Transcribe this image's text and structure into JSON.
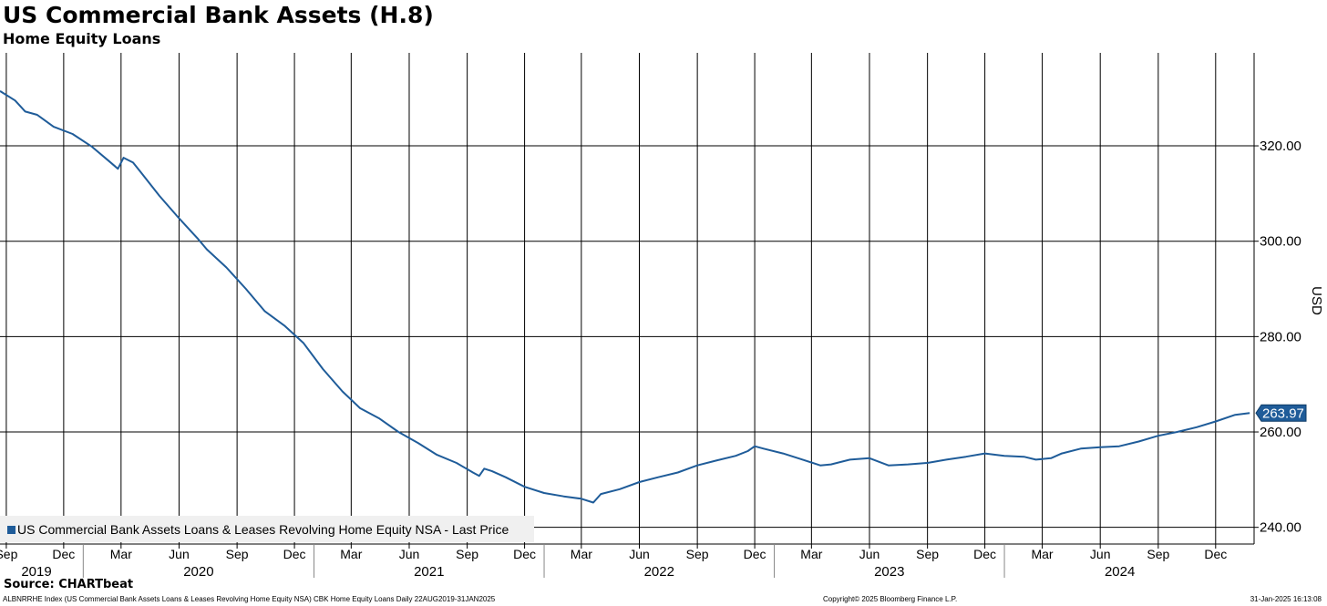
{
  "header": {
    "title": "US Commercial Bank Assets (H.8)",
    "subtitle": "Home Equity Loans"
  },
  "footer": {
    "source": "Source: CHARTbeat",
    "left": "ALBNRRHE Index (US Commercial Bank Assets Loans & Leases Revolving Home Equity NSA) CBK Home Equity Loans  Daily 22AUG2019-31JAN2025",
    "center": "Copyright© 2025 Bloomberg Finance L.P.",
    "right": "31-Jan-2025 16:13:08"
  },
  "colors": {
    "series": "#1f5c99",
    "grid": "#000000",
    "last_price_badge": "#1f5c99",
    "legend_bg": "#f0f0f0"
  },
  "chart_data": {
    "type": "line",
    "title": "US Commercial Bank Assets (H.8)",
    "subtitle": "Home Equity Loans",
    "ylabel": "USD",
    "xlabel": "",
    "ylim": [
      236.5,
      339.5
    ],
    "yticks": [
      240,
      260,
      280,
      300,
      320
    ],
    "ytick_labels": [
      "240.00",
      "260.00",
      "280.00",
      "300.00",
      "320.00"
    ],
    "xlim": [
      "2019-08-22",
      "2025-01-31"
    ],
    "month_ticks": [
      {
        "date": "2019-09-01",
        "label": "Sep"
      },
      {
        "date": "2019-12-01",
        "label": "Dec"
      },
      {
        "date": "2020-03-01",
        "label": "Mar"
      },
      {
        "date": "2020-06-01",
        "label": "Jun"
      },
      {
        "date": "2020-09-01",
        "label": "Sep"
      },
      {
        "date": "2020-12-01",
        "label": "Dec"
      },
      {
        "date": "2021-03-01",
        "label": "Mar"
      },
      {
        "date": "2021-06-01",
        "label": "Jun"
      },
      {
        "date": "2021-09-01",
        "label": "Sep"
      },
      {
        "date": "2021-12-01",
        "label": "Dec"
      },
      {
        "date": "2022-03-01",
        "label": "Mar"
      },
      {
        "date": "2022-06-01",
        "label": "Jun"
      },
      {
        "date": "2022-09-01",
        "label": "Sep"
      },
      {
        "date": "2022-12-01",
        "label": "Dec"
      },
      {
        "date": "2023-03-01",
        "label": "Mar"
      },
      {
        "date": "2023-06-01",
        "label": "Jun"
      },
      {
        "date": "2023-09-01",
        "label": "Sep"
      },
      {
        "date": "2023-12-01",
        "label": "Dec"
      },
      {
        "date": "2024-03-01",
        "label": "Mar"
      },
      {
        "date": "2024-06-01",
        "label": "Jun"
      },
      {
        "date": "2024-09-01",
        "label": "Sep"
      },
      {
        "date": "2024-12-01",
        "label": "Dec"
      }
    ],
    "year_labels": [
      {
        "label": "2019",
        "from": "2019-08-22",
        "to": "2020-01-01"
      },
      {
        "label": "2020",
        "from": "2020-01-01",
        "to": "2021-01-01"
      },
      {
        "label": "2021",
        "from": "2021-01-01",
        "to": "2022-01-01"
      },
      {
        "label": "2022",
        "from": "2022-01-01",
        "to": "2023-01-01"
      },
      {
        "label": "2023",
        "from": "2023-01-01",
        "to": "2024-01-01"
      },
      {
        "label": "2024",
        "from": "2024-01-01",
        "to": "2025-01-01"
      }
    ],
    "year_separators": [
      "2020-01-01",
      "2021-01-01",
      "2022-01-01",
      "2023-01-01",
      "2024-01-01"
    ],
    "grid": true,
    "legend": {
      "placement": "bottom-left",
      "label": "US Commercial Bank Assets Loans & Leases Revolving Home Equity NSA - Last Price"
    },
    "last_value_label": "263.97",
    "series": [
      {
        "name": "US Commercial Bank Assets Loans & Leases Revolving Home Equity NSA - Last Price",
        "x": [
          "2019-08-22",
          "2019-09-15",
          "2019-10-01",
          "2019-10-20",
          "2019-11-15",
          "2019-12-15",
          "2020-01-15",
          "2020-02-10",
          "2020-02-25",
          "2020-03-05",
          "2020-03-20",
          "2020-04-01",
          "2020-05-01",
          "2020-06-01",
          "2020-07-01",
          "2020-07-15",
          "2020-08-15",
          "2020-09-15",
          "2020-10-15",
          "2020-11-15",
          "2020-12-15",
          "2021-01-15",
          "2021-02-15",
          "2021-03-15",
          "2021-04-15",
          "2021-05-15",
          "2021-06-15",
          "2021-07-15",
          "2021-08-15",
          "2021-09-10",
          "2021-09-20",
          "2021-09-28",
          "2021-10-10",
          "2021-11-01",
          "2021-12-01",
          "2022-01-01",
          "2022-02-01",
          "2022-03-01",
          "2022-03-20",
          "2022-04-01",
          "2022-05-01",
          "2022-06-01",
          "2022-07-01",
          "2022-08-01",
          "2022-09-01",
          "2022-10-01",
          "2022-11-01",
          "2022-11-20",
          "2022-12-01",
          "2022-12-15",
          "2023-01-15",
          "2023-02-15",
          "2023-03-15",
          "2023-04-01",
          "2023-05-01",
          "2023-06-01",
          "2023-07-01",
          "2023-08-01",
          "2023-09-01",
          "2023-10-01",
          "2023-11-01",
          "2023-12-01",
          "2024-01-01",
          "2024-02-01",
          "2024-02-20",
          "2024-03-15",
          "2024-04-01",
          "2024-05-01",
          "2024-06-01",
          "2024-07-01",
          "2024-08-01",
          "2024-09-01",
          "2024-10-01",
          "2024-11-01",
          "2024-12-01",
          "2025-01-01",
          "2025-01-24"
        ],
        "y": [
          331.5,
          329.5,
          327.2,
          326.5,
          324.0,
          322.5,
          319.8,
          316.9,
          315.2,
          317.5,
          316.5,
          314.5,
          309.5,
          304.8,
          300.5,
          298.3,
          294.5,
          290.0,
          285.3,
          282.3,
          278.7,
          273.2,
          268.5,
          265.0,
          262.8,
          260.0,
          257.7,
          255.2,
          253.5,
          251.5,
          250.8,
          252.3,
          251.8,
          250.5,
          248.5,
          247.2,
          246.5,
          246.0,
          245.2,
          247.0,
          248.0,
          249.5,
          250.5,
          251.5,
          253.0,
          254.0,
          255.0,
          256.0,
          257.0,
          256.5,
          255.5,
          254.2,
          253.0,
          253.2,
          254.2,
          254.5,
          253.0,
          253.2,
          253.5,
          254.2,
          254.8,
          255.5,
          255.0,
          254.8,
          254.2,
          254.5,
          255.5,
          256.5,
          256.8,
          257.0,
          258.0,
          259.2,
          260.0,
          261.0,
          262.2,
          263.6,
          263.97
        ]
      }
    ]
  }
}
